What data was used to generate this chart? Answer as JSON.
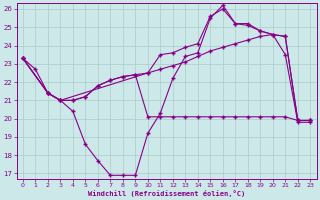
{
  "bg_color": "#cce8e8",
  "line_color": "#880088",
  "grid_color": "#aacccc",
  "xlabel": "Windchill (Refroidissement éolien,°C)",
  "xlabel_color": "#880088",
  "tick_color": "#880088",
  "ylim": [
    17,
    26
  ],
  "xlim": [
    -0.5,
    23.5
  ],
  "yticks": [
    17,
    18,
    19,
    20,
    21,
    22,
    23,
    24,
    25,
    26
  ],
  "xticks": [
    0,
    1,
    2,
    3,
    4,
    5,
    6,
    7,
    8,
    9,
    10,
    11,
    12,
    13,
    14,
    15,
    16,
    17,
    18,
    19,
    20,
    21,
    22,
    23
  ],
  "series1_x": [
    0,
    1,
    2,
    3,
    4,
    5,
    6,
    7,
    8,
    9,
    10,
    11,
    12,
    13,
    14,
    15,
    16,
    17,
    18,
    19,
    20,
    21,
    22,
    23
  ],
  "series1_y": [
    23.3,
    22.7,
    21.4,
    21.0,
    20.4,
    18.6,
    17.7,
    16.9,
    16.9,
    16.9,
    19.2,
    20.3,
    22.2,
    23.4,
    23.6,
    25.5,
    26.2,
    25.2,
    25.2,
    24.8,
    24.6,
    23.5,
    19.8,
    19.8
  ],
  "series2_x": [
    0,
    2,
    3,
    4,
    5,
    6,
    7,
    8,
    9,
    10,
    11,
    12,
    13,
    14,
    15,
    16,
    17,
    18,
    19,
    20,
    21,
    22,
    23
  ],
  "series2_y": [
    23.3,
    21.4,
    21.0,
    21.0,
    21.2,
    21.8,
    22.1,
    22.3,
    22.4,
    22.5,
    22.7,
    22.9,
    23.1,
    23.4,
    23.7,
    23.9,
    24.1,
    24.3,
    24.5,
    24.6,
    24.5,
    19.9,
    19.9
  ],
  "series3_x": [
    0,
    2,
    3,
    4,
    5,
    6,
    7,
    8,
    9,
    10,
    11,
    12,
    13,
    14,
    15,
    16,
    17,
    18,
    19,
    20,
    21,
    22,
    23
  ],
  "series3_y": [
    23.3,
    21.4,
    21.0,
    21.0,
    21.2,
    21.8,
    22.1,
    22.3,
    22.4,
    20.1,
    20.1,
    20.1,
    20.1,
    20.1,
    20.1,
    20.1,
    20.1,
    20.1,
    20.1,
    20.1,
    20.1,
    19.9,
    19.9
  ],
  "series4_x": [
    0,
    2,
    3,
    10,
    11,
    12,
    13,
    14,
    15,
    16,
    17,
    18,
    19,
    20,
    21,
    22,
    23
  ],
  "series4_y": [
    23.3,
    21.4,
    21.0,
    22.5,
    23.5,
    23.6,
    23.9,
    24.1,
    25.6,
    26.0,
    25.2,
    25.1,
    24.8,
    24.6,
    24.5,
    19.9,
    19.9
  ]
}
